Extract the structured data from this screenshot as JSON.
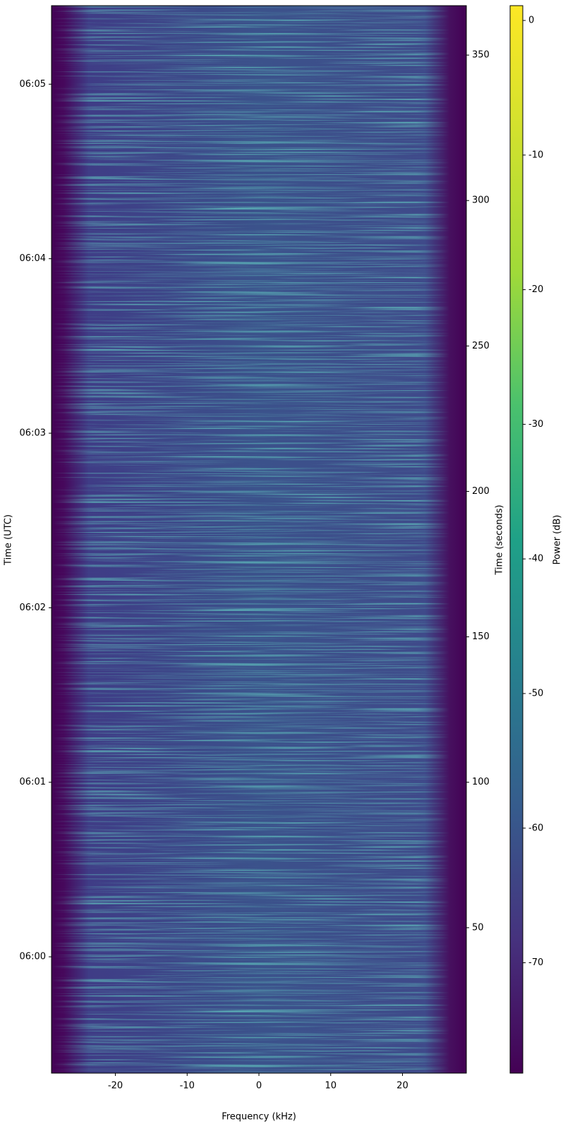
{
  "chart_data": {
    "type": "spectrogram",
    "colormap": "viridis",
    "xlabel": "Frequency (kHz)",
    "ylabel": "Time (UTC)",
    "y2label": "Time (seconds)",
    "colorbar_label": "Power (dB)",
    "xlim": [
      -28.9,
      28.9
    ],
    "xticks": [
      -20,
      -10,
      0,
      10,
      20
    ],
    "ylim": [
      0,
      367
    ],
    "yticks": [
      {
        "value": 40,
        "label": "06:00"
      },
      {
        "value": 100,
        "label": "06:01"
      },
      {
        "value": 160,
        "label": "06:02"
      },
      {
        "value": 220,
        "label": "06:03"
      },
      {
        "value": 280,
        "label": "06:04"
      },
      {
        "value": 340,
        "label": "06:05"
      }
    ],
    "y2lim": [
      0,
      367
    ],
    "y2ticks": [
      50,
      100,
      150,
      200,
      250,
      300,
      350
    ],
    "clim": [
      -78.2,
      1.1
    ],
    "cticks": [
      0,
      -10,
      -20,
      -30,
      -40,
      -50,
      -60,
      -70
    ]
  }
}
